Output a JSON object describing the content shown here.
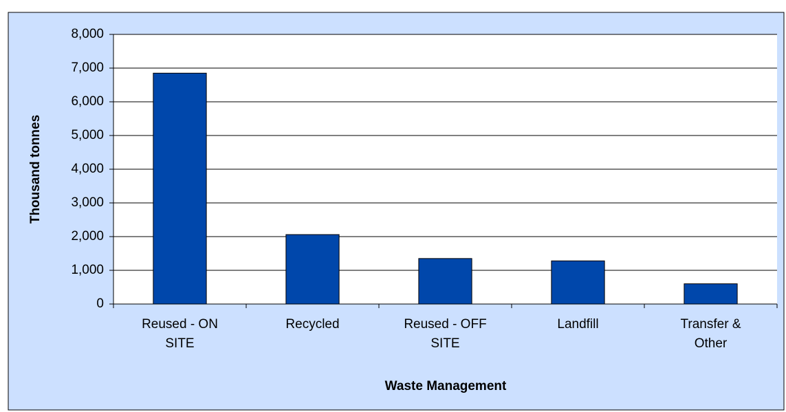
{
  "chart_data": {
    "type": "bar",
    "x_label": "Waste Management",
    "y_label": "Thousand tonnes",
    "categories": [
      "Reused - ON SITE",
      "Recycled",
      "Reused - OFF SITE",
      "Landfill",
      "Transfer & Other"
    ],
    "values": [
      6850,
      2060,
      1350,
      1280,
      600
    ],
    "color": "#0047AB",
    "ylim": [
      0,
      8000
    ],
    "yticks": [
      0,
      {
        "value": 1000,
        "label": "1,000"
      },
      {
        "value": 2000,
        "label": "2,000"
      },
      {
        "value": 3000,
        "label": "3,000"
      },
      {
        "value": 4000,
        "label": "4,000"
      },
      {
        "value": 5000,
        "label": "5,000"
      },
      {
        "value": 6000,
        "label": "6,000"
      },
      {
        "value": 7000,
        "label": "7,000"
      },
      {
        "value": 8000,
        "label": "8,000"
      }
    ],
    "grid": true
  }
}
